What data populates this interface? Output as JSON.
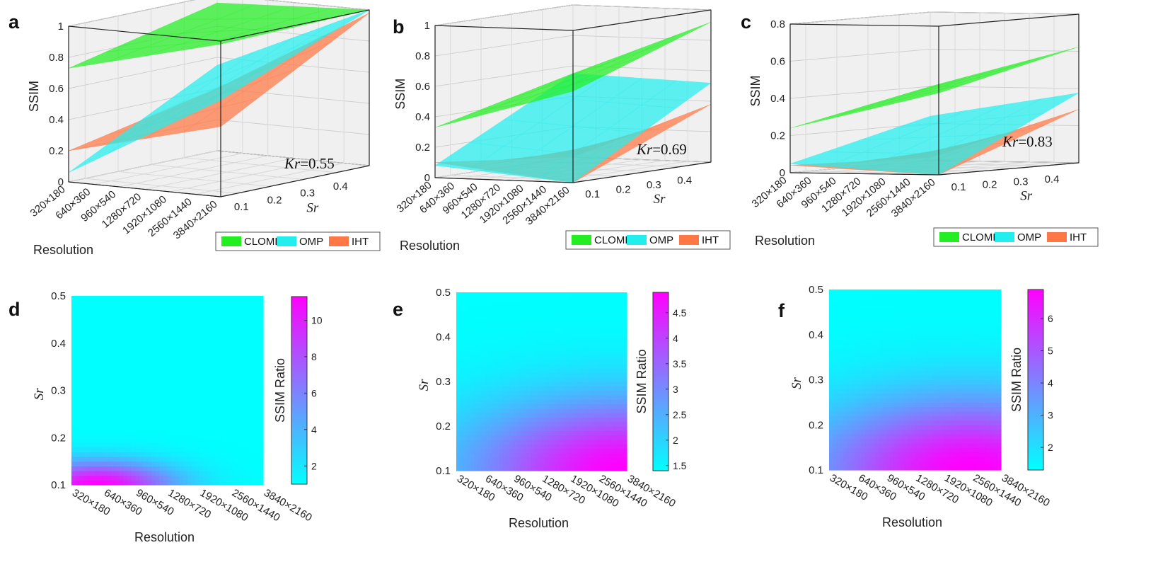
{
  "chart_data": [
    {
      "panel": "a",
      "type": "surface3d",
      "zlabel": "SSIM",
      "xlabel": "Resolution",
      "ylabel": "Sr",
      "zticks": [
        "0",
        "0.2",
        "0.4",
        "0.6",
        "0.8",
        "1"
      ],
      "zlim": [
        0,
        1
      ],
      "resolutions": [
        "320×180",
        "640×360",
        "960×540",
        "1280×720",
        "1920×1080",
        "2560×1440",
        "3840×2160"
      ],
      "sr_ticks": [
        "0.1",
        "0.2",
        "0.3",
        "0.4"
      ],
      "annotation": {
        "symbol": "Kr",
        "value": "=0.55"
      },
      "legend": [
        "CLOMP",
        "OMP",
        "IHT"
      ],
      "series": [
        {
          "name": "CLOMP",
          "color": "#22ee22",
          "corners": {
            "r0s1": 0.73,
            "r6s1": 0.98,
            "r0s5": 0.95,
            "r6s5": 1.0
          }
        },
        {
          "name": "OMP",
          "color": "#22eeee",
          "corners": {
            "r0s1": 0.06,
            "r6s1": 0.62,
            "r0s5": 0.55,
            "r6s5": 1.0
          }
        },
        {
          "name": "IHT",
          "color": "#ff7744",
          "corners": {
            "r0s1": 0.2,
            "r6s1": 0.45,
            "r0s5": 0.4,
            "r6s5": 0.98
          }
        }
      ]
    },
    {
      "panel": "b",
      "type": "surface3d",
      "zlabel": "SSIM",
      "xlabel": "Resolution",
      "ylabel": "Sr",
      "zticks": [
        "0",
        "0.2",
        "0.4",
        "0.6",
        "0.8",
        "1"
      ],
      "zlim": [
        0,
        1
      ],
      "resolutions": [
        "320×180",
        "640×360",
        "960×540",
        "1280×720",
        "1920×1080",
        "2560×1440",
        "3840×2160"
      ],
      "sr_ticks": [
        "0.1",
        "0.2",
        "0.3",
        "0.4"
      ],
      "annotation": {
        "symbol": "Kr",
        "value": "=0.69"
      },
      "legend": [
        "CLOMP",
        "OMP",
        "IHT"
      ],
      "series": [
        {
          "name": "CLOMP",
          "color": "#22ee22",
          "corners": {
            "r0s1": 0.33,
            "r6s1": 0.6,
            "r0s5": 0.55,
            "r6s5": 0.92
          }
        },
        {
          "name": "OMP",
          "color": "#22eeee",
          "corners": {
            "r0s1": 0.08,
            "r6s1": 0.0,
            "r0s5": 0.55,
            "r6s5": 0.52
          }
        },
        {
          "name": "IHT",
          "color": "#ff7744",
          "corners": {
            "r0s1": 0.1,
            "r6s1": 0.0,
            "r0s5": 0.0,
            "r6s5": 0.38
          }
        }
      ]
    },
    {
      "panel": "c",
      "type": "surface3d",
      "zlabel": "SSIM",
      "xlabel": "Resolution",
      "ylabel": "Sr",
      "zticks": [
        "0",
        "0.2",
        "0.4",
        "0.6",
        "0.8"
      ],
      "zlim": [
        0,
        0.8
      ],
      "resolutions": [
        "320×180",
        "640×360",
        "960×540",
        "1280×720",
        "1920×1080",
        "2560×1440",
        "3840×2160"
      ],
      "sr_ticks": [
        "0.1",
        "0.2",
        "0.3",
        "0.4"
      ],
      "annotation": {
        "symbol": "Kr",
        "value": "=0.83"
      },
      "legend": [
        "CLOMP",
        "OMP",
        "IHT"
      ],
      "series": [
        {
          "name": "CLOMP",
          "color": "#22ee22",
          "corners": {
            "r0s1": 0.3,
            "r6s1": 0.55,
            "r0s5": 0.5,
            "r6s5": 0.78
          }
        },
        {
          "name": "OMP",
          "color": "#22eeee",
          "corners": {
            "r0s1": 0.06,
            "r6s1": 0.0,
            "r0s5": 0.3,
            "r6s5": 0.47
          }
        },
        {
          "name": "IHT",
          "color": "#ff7744",
          "corners": {
            "r0s1": 0.05,
            "r6s1": 0.0,
            "r0s5": 0.02,
            "r6s5": 0.36
          }
        }
      ]
    },
    {
      "panel": "d",
      "type": "heatmap",
      "xlabel": "Resolution",
      "ylabel": "Sr",
      "x_ticks": [
        "320×180",
        "640×360",
        "960×540",
        "1280×720",
        "1920×1080",
        "2560×1440",
        "3840×2160"
      ],
      "y_ticks": [
        "0.1",
        "0.2",
        "0.3",
        "0.4",
        "0.5"
      ],
      "ylim": [
        0.1,
        0.5
      ],
      "colorbar": {
        "label": "SSIM Ratio",
        "ticks": [
          "2",
          "4",
          "6",
          "8",
          "10"
        ],
        "min": 1,
        "max": 11.3,
        "min_color": "#00ffff",
        "max_color": "#ff00ff"
      },
      "hotspot": {
        "resolution_index": 0.8,
        "sr": 0.1,
        "peak_ratio": 11.3
      }
    },
    {
      "panel": "e",
      "type": "heatmap",
      "xlabel": "Resolution",
      "ylabel": "Sr",
      "x_ticks": [
        "320×180",
        "640×360",
        "960×540",
        "1280×720",
        "1920×1080",
        "2560×1440",
        "3840×2160"
      ],
      "y_ticks": [
        "0.1",
        "0.2",
        "0.3",
        "0.4",
        "0.5"
      ],
      "ylim": [
        0.1,
        0.5
      ],
      "colorbar": {
        "label": "SSIM Ratio",
        "ticks": [
          "1.5",
          "2",
          "2.5",
          "3",
          "3.5",
          "4",
          "4.5"
        ],
        "min": 1.4,
        "max": 4.9,
        "min_color": "#00ffff",
        "max_color": "#ff00ff"
      },
      "hotspot": {
        "resolution_index": 6,
        "sr": 0.1,
        "peak_ratio": 4.9
      }
    },
    {
      "panel": "f",
      "type": "heatmap",
      "xlabel": "Resolution",
      "ylabel": "Sr",
      "x_ticks": [
        "320×180",
        "640×360",
        "960×540",
        "1280×720",
        "1920×1080",
        "2560×1440",
        "3840×2160"
      ],
      "y_ticks": [
        "0.1",
        "0.2",
        "0.3",
        "0.4",
        "0.5"
      ],
      "ylim": [
        0.1,
        0.5
      ],
      "colorbar": {
        "label": "SSIM Ratio",
        "ticks": [
          "2",
          "3",
          "4",
          "5",
          "6"
        ],
        "min": 1.3,
        "max": 6.9,
        "min_color": "#00ffff",
        "max_color": "#ff00ff"
      },
      "hotspot": {
        "resolution_index": 5,
        "sr": 0.1,
        "peak_ratio": 6.9
      }
    }
  ]
}
